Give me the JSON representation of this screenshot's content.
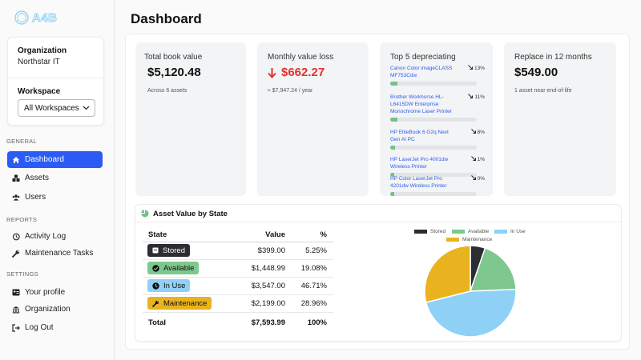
{
  "app": {
    "logo": "A4B"
  },
  "sidebar": {
    "org_label": "Organization",
    "org_value": "Northstar IT",
    "ws_label": "Workspace",
    "ws_value": "All Workspaces",
    "sections": [
      "GENERAL",
      "REPORTS",
      "SETTINGS"
    ],
    "items": [
      {
        "label": "Dashboard",
        "icon": "home-icon"
      },
      {
        "label": "Assets",
        "icon": "boxes-icon"
      },
      {
        "label": "Users",
        "icon": "users-icon"
      },
      {
        "label": "Activity Log",
        "icon": "history-icon"
      },
      {
        "label": "Maintenance Tasks",
        "icon": "wrench-icon"
      },
      {
        "label": "Your profile",
        "icon": "id-card-icon"
      },
      {
        "label": "Organization",
        "icon": "building-icon"
      },
      {
        "label": "Log Out",
        "icon": "logout-icon"
      }
    ]
  },
  "header": {
    "title": "Dashboard"
  },
  "stats": {
    "book": {
      "label": "Total book value",
      "value": "$5,120.48",
      "sub": "Across 6 assets"
    },
    "loss": {
      "label": "Monthly value loss",
      "value": "$662.27",
      "sub": "≈ $7,947.24 / year"
    },
    "top5": {
      "label": "Top 5 depreciating",
      "items": [
        {
          "name": "Canon Color imageCLASS MF753Cdw",
          "pct": "13%",
          "fill": 0.13
        },
        {
          "name": "Brother Workhorse HL-L6415DW Enterprise Monochrome Laser Printer",
          "pct": "11%",
          "fill": 0.11
        },
        {
          "name": "HP EliteBook 6 G2q Next Gen AI PC",
          "pct": "8%",
          "fill": 0.08
        },
        {
          "name": "HP LaserJet Pro 4001dw Wireless Printer",
          "pct": "1%",
          "fill": 0.01
        },
        {
          "name": "HP Color LaserJet Pro 4201dw Wireless Printer",
          "pct": "0%",
          "fill": 0.0
        }
      ]
    },
    "replace": {
      "label": "Replace in 12 months",
      "value": "$549.00",
      "sub": "1 asset near end-of-life"
    }
  },
  "asset_value": {
    "title": "Asset Value by State",
    "headers": [
      "State",
      "Value",
      "%"
    ],
    "rows": [
      {
        "state": "Stored",
        "value": "$399.00",
        "pct": "5.25%",
        "color": "#2b2d33",
        "text_color": "#ffffff"
      },
      {
        "state": "Available",
        "value": "$1,448.99",
        "pct": "19.08%",
        "color": "#7ec78e",
        "text_color": "#111111"
      },
      {
        "state": "In Use",
        "value": "$3,547.00",
        "pct": "46.71%",
        "color": "#8fd0f7",
        "text_color": "#111111"
      },
      {
        "state": "Maintenance",
        "value": "$2,199.00",
        "pct": "28.96%",
        "color": "#e8b31f",
        "text_color": "#111111"
      }
    ],
    "total": {
      "label": "Total",
      "value": "$7,593.99",
      "pct": "100%"
    }
  },
  "chart_data": {
    "type": "pie",
    "categories": [
      "Stored",
      "Available",
      "In Use",
      "Maintenance"
    ],
    "values": [
      399.0,
      1448.99,
      3547.0,
      2199.0
    ],
    "colors": [
      "#2b2d33",
      "#7ec78e",
      "#8fd0f7",
      "#e8b31f"
    ],
    "legend_position": "top"
  }
}
